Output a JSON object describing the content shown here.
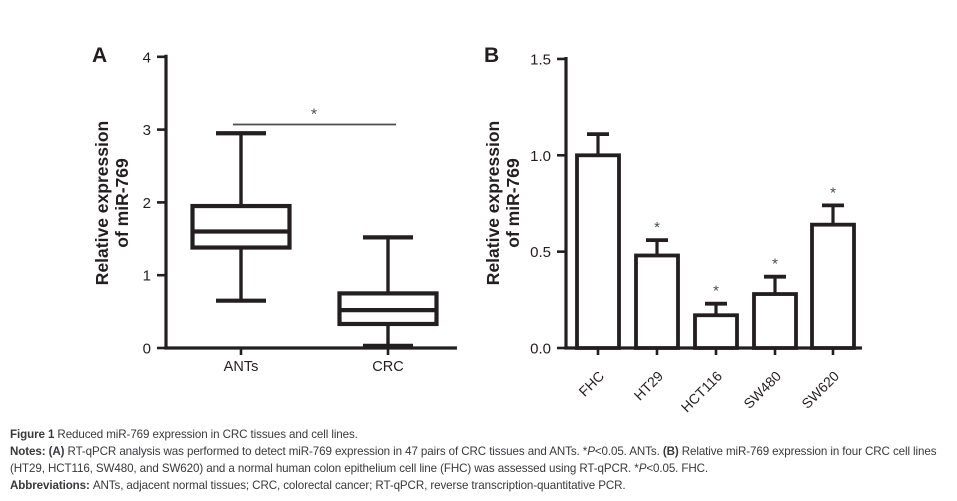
{
  "figure": {
    "panel_a_label": "A",
    "panel_b_label": "B"
  },
  "chart_data": [
    {
      "type": "boxplot",
      "panel": "A",
      "ylabel_lines": [
        "Relative expression",
        "of miR-769"
      ],
      "ylim": [
        0,
        4
      ],
      "yticks": [
        0,
        1,
        2,
        3,
        4
      ],
      "categories": [
        "ANTs",
        "CRC"
      ],
      "boxes": [
        {
          "category": "ANTs",
          "min": 0.65,
          "q1": 1.38,
          "median": 1.6,
          "q3": 1.95,
          "max": 2.95
        },
        {
          "category": "CRC",
          "min": 0.03,
          "q1": 0.33,
          "median": 0.52,
          "q3": 0.75,
          "max": 1.52
        }
      ],
      "significance": {
        "label": "*",
        "y": 3.07
      }
    },
    {
      "type": "bar",
      "panel": "B",
      "ylabel_lines": [
        "Relative expression",
        "of miR-769"
      ],
      "ylim": [
        0,
        1.5
      ],
      "yticks": [
        0,
        0.5,
        1.0,
        1.5
      ],
      "ytick_labels": [
        "0.0",
        "0.5",
        "1.0",
        "1.5"
      ],
      "categories": [
        "FHC",
        "HT29",
        "HCT116",
        "SW480",
        "SW620"
      ],
      "values": [
        1.0,
        0.48,
        0.17,
        0.28,
        0.64
      ],
      "errors_up": [
        0.11,
        0.08,
        0.06,
        0.09,
        0.1
      ],
      "sig_markers": [
        "",
        "*",
        "*",
        "*",
        "*"
      ]
    }
  ],
  "caption": {
    "lines": [
      {
        "segments": [
          {
            "text": "Figure 1 ",
            "bold": true
          },
          {
            "text": "Reduced miR-769 expression in CRC tissues and cell lines.",
            "bold": false
          }
        ]
      },
      {
        "segments": [
          {
            "text": "Notes: ",
            "bold": true
          },
          {
            "text": "(A) ",
            "bold": true
          },
          {
            "text": "RT-qPCR analysis was performed to detect miR-769 expression in 47 pairs of CRC tissues and ANTs. *",
            "bold": false
          },
          {
            "text": "P",
            "italic": true
          },
          {
            "text": "<0.05. ANTs. ",
            "bold": false
          },
          {
            "text": "(B) ",
            "bold": true
          },
          {
            "text": "Relative miR-769 expression in four CRC cell lines (HT29, HCT116, SW480, and SW620) and a normal human colon epithelium cell line (FHC) was assessed using RT-qPCR. *",
            "bold": false
          },
          {
            "text": "P",
            "italic": true
          },
          {
            "text": "<0.05. FHC.",
            "bold": false
          }
        ]
      },
      {
        "segments": [
          {
            "text": "Abbreviations: ",
            "bold": true
          },
          {
            "text": "ANTs, adjacent normal tissues; CRC, colorectal cancer; RT-qPCR, reverse transcription-quantitative PCR.",
            "bold": false
          }
        ]
      }
    ]
  },
  "colors": {
    "ink": "#231f20",
    "accent": "#4b4b52",
    "caption_text": "#39393b",
    "background": "#ffffff"
  }
}
